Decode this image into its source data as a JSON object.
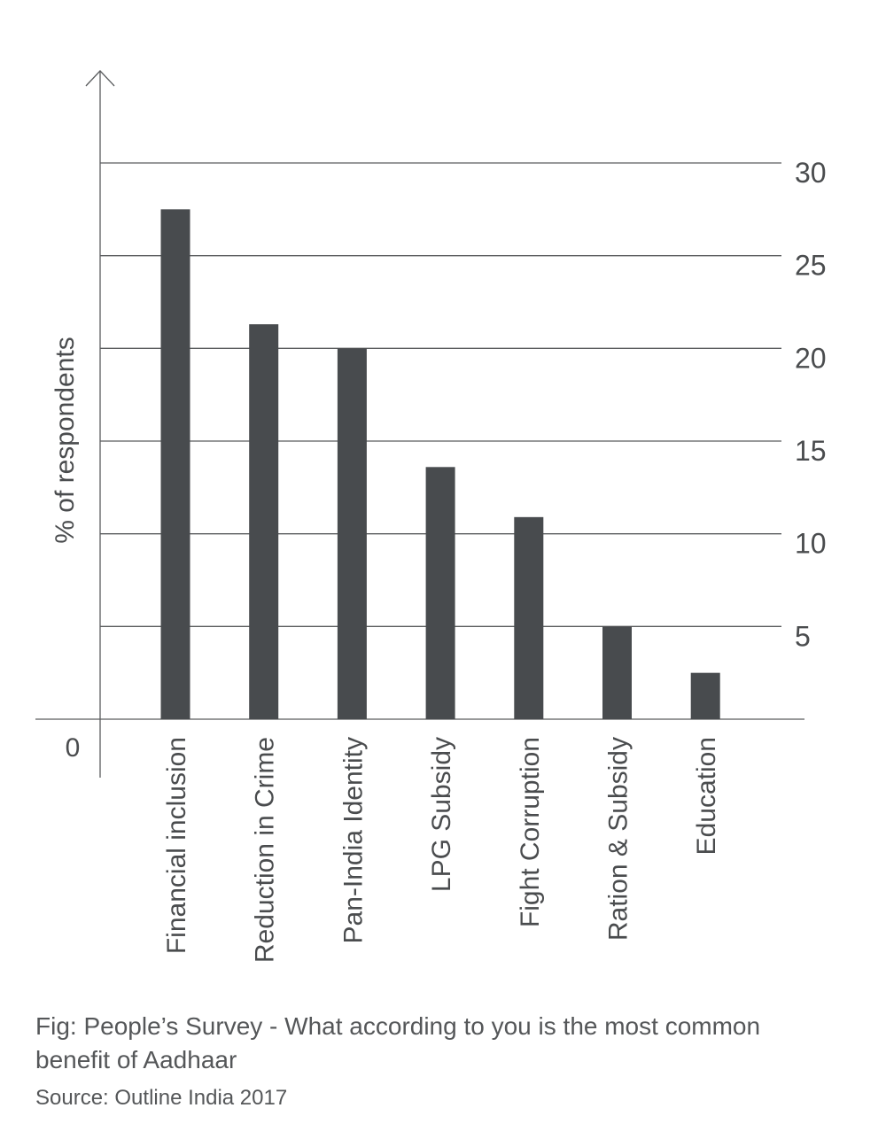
{
  "chart_data": {
    "type": "bar",
    "categories": [
      "Financial inclusion",
      "Reduction in Crime",
      "Pan-India Identity",
      "LPG Subsidy",
      "Fight Corruption",
      "Ration & Subsidy",
      "Education"
    ],
    "values": [
      27.5,
      21.3,
      20,
      13.6,
      10.9,
      5,
      2.5
    ],
    "ylabel": "% of respondents",
    "xlabel": "",
    "ylim": [
      0,
      30
    ],
    "yticks": [
      30,
      25,
      20,
      15,
      10,
      5
    ],
    "zero_label": "0",
    "grid": true,
    "bar_color": "#484b4e",
    "axis_color": "#5a5c5e"
  },
  "caption": "Fig: People’s Survey - What according to you is the most common benefit of Aadhaar",
  "source": "Source: Outline India 2017"
}
